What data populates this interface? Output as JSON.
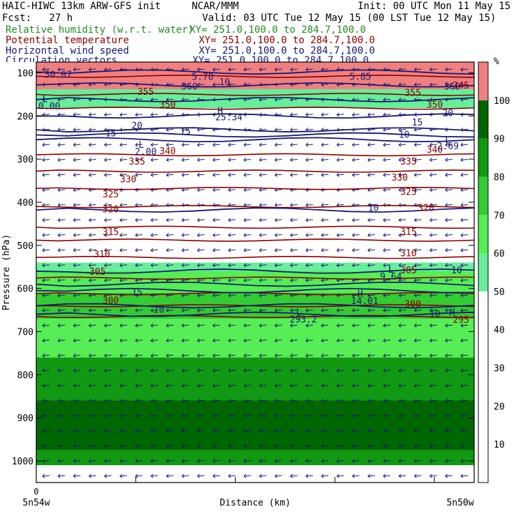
{
  "header": {
    "model": "HAIC-HIWC 13km ARW-GFS init",
    "org": "NCAR/MMM",
    "init": "Init: 00 UTC Mon 11 May 15",
    "fcst": "Fcst:   27 h",
    "valid": "Valid: 03 UTC Tue 12 May 15 (00 LST Tue 12 May 15)",
    "fields": [
      {
        "name": "Relative humidity (w.r.t. water)",
        "xy": "XY= 251.0,100.0 to 284.7,100.0",
        "color": "#228b22"
      },
      {
        "name": "Potential temperature",
        "xy": "XY= 251.0,100.0 to 284.7,100.0",
        "color": "#8b0000"
      },
      {
        "name": "Horizontal wind speed",
        "xy": "XY= 251.0,100.0 to 284.7,100.0",
        "color": "#191970"
      },
      {
        "name": "Circulation vectors",
        "xy": "XY= 251.0,100.0 to 284.7,100.0",
        "color": "#191970"
      }
    ]
  },
  "chart_data": {
    "type": "heatmap",
    "ylabel": "Pressure (hPa)",
    "xlabel": "Distance (km)",
    "x_start_label": "5n54w",
    "x_end_label": "5n50w",
    "x_zero_label": "0",
    "yticks": [
      100,
      200,
      300,
      400,
      500,
      600,
      700,
      800,
      900,
      1000
    ],
    "ylim": [
      1050,
      75
    ],
    "colorbar": {
      "unit": "%",
      "levels": [
        10,
        20,
        30,
        40,
        50,
        60,
        70,
        80,
        90,
        100
      ],
      "colors": [
        "#ffffff",
        "#ffffff",
        "#ffffff",
        "#ffffff",
        "#ffffff",
        "#66ee99",
        "#55ee55",
        "#33cc33",
        "#119911",
        "#006600",
        "#f08080"
      ]
    },
    "rh_bands": [
      {
        "p_top": 75,
        "p_bot": 138,
        "rh": 105
      },
      {
        "p_top": 138,
        "p_bot": 182,
        "rh": 55
      },
      {
        "p_top": 182,
        "p_bot": 540,
        "rh": 30
      },
      {
        "p_top": 540,
        "p_bot": 560,
        "rh": 55
      },
      {
        "p_top": 560,
        "p_bot": 610,
        "rh": 65
      },
      {
        "p_top": 610,
        "p_bot": 670,
        "rh": 75
      },
      {
        "p_top": 670,
        "p_bot": 760,
        "rh": 65
      },
      {
        "p_top": 760,
        "p_bot": 860,
        "rh": 80
      },
      {
        "p_top": 860,
        "p_bot": 975,
        "rh": 95
      },
      {
        "p_top": 975,
        "p_bot": 1010,
        "rh": 85
      },
      {
        "p_top": 1010,
        "p_bot": 1050,
        "rh": 30
      }
    ],
    "theta_labels": [
      {
        "text": "355",
        "x": 0.25,
        "p": 143
      },
      {
        "text": "355",
        "x": 0.86,
        "p": 145
      },
      {
        "text": "350",
        "x": 0.3,
        "p": 173
      },
      {
        "text": "350",
        "x": 0.91,
        "p": 173
      },
      {
        "text": "345",
        "x": 0.97,
        "p": 128
      },
      {
        "text": "340",
        "x": 0.3,
        "p": 280
      },
      {
        "text": "340",
        "x": 0.91,
        "p": 277
      },
      {
        "text": "335",
        "x": 0.23,
        "p": 305
      },
      {
        "text": "335",
        "x": 0.85,
        "p": 305
      },
      {
        "text": "330",
        "x": 0.21,
        "p": 346
      },
      {
        "text": "330",
        "x": 0.83,
        "p": 342
      },
      {
        "text": "325",
        "x": 0.17,
        "p": 381
      },
      {
        "text": "325",
        "x": 0.85,
        "p": 375
      },
      {
        "text": "320",
        "x": 0.17,
        "p": 415
      },
      {
        "text": "320",
        "x": 0.89,
        "p": 412
      },
      {
        "text": "315",
        "x": 0.17,
        "p": 468
      },
      {
        "text": "315",
        "x": 0.85,
        "p": 468
      },
      {
        "text": "310",
        "x": 0.15,
        "p": 520
      },
      {
        "text": "310",
        "x": 0.85,
        "p": 517
      },
      {
        "text": "305",
        "x": 0.14,
        "p": 560
      },
      {
        "text": "305",
        "x": 0.85,
        "p": 557
      },
      {
        "text": "300",
        "x": 0.17,
        "p": 627
      },
      {
        "text": "300",
        "x": 0.86,
        "p": 635
      },
      {
        "text": "295",
        "x": 0.97,
        "p": 672
      }
    ],
    "wind_labels": [
      {
        "text": "10",
        "x": 0.43,
        "p": 120
      },
      {
        "text": "20",
        "x": 0.94,
        "p": 192
      },
      {
        "text": "15",
        "x": 0.87,
        "p": 214
      },
      {
        "text": "20",
        "x": 0.23,
        "p": 221
      },
      {
        "text": "15",
        "x": 0.17,
        "p": 239
      },
      {
        "text": "15",
        "x": 0.34,
        "p": 235
      },
      {
        "text": "10",
        "x": 0.84,
        "p": 242
      },
      {
        "text": "10",
        "x": 0.77,
        "p": 412
      },
      {
        "text": "10",
        "x": 0.96,
        "p": 557
      },
      {
        "text": "15",
        "x": 0.23,
        "p": 608
      },
      {
        "text": "10",
        "x": 0.28,
        "p": 648
      },
      {
        "text": "10",
        "x": 0.91,
        "p": 658
      }
    ],
    "extrema_labels": [
      {
        "text": "L",
        "x": 0.02,
        "p": 160
      },
      {
        "text": "0.00",
        "x": 0.03,
        "p": 176
      },
      {
        "text": "H",
        "x": 0.42,
        "p": 187
      },
      {
        "text": "25.34",
        "x": 0.44,
        "p": 202
      },
      {
        "text": "L",
        "x": 0.24,
        "p": 266
      },
      {
        "text": "2.00",
        "x": 0.25,
        "p": 282
      },
      {
        "text": "L",
        "x": 0.94,
        "p": 255
      },
      {
        "text": "2.69",
        "x": 0.94,
        "p": 269
      },
      {
        "text": "L",
        "x": 0.81,
        "p": 555
      },
      {
        "text": "9.64",
        "x": 0.81,
        "p": 571
      },
      {
        "text": "H",
        "x": 0.74,
        "p": 612
      },
      {
        "text": "14.01",
        "x": 0.75,
        "p": 628
      },
      {
        "text": "L",
        "x": 0.6,
        "p": 655
      },
      {
        "text": "293.2",
        "x": 0.61,
        "p": 671
      },
      {
        "text": "H",
        "x": 0.95,
        "p": 655
      },
      {
        "text": "50.07",
        "x": 0.05,
        "p": 103
      },
      {
        "text": "5.78",
        "x": 0.38,
        "p": 108
      },
      {
        "text": "5.85",
        "x": 0.74,
        "p": 108
      },
      {
        "text": "360",
        "x": 0.35,
        "p": 131
      },
      {
        "text": "360",
        "x": 0.95,
        "p": 131
      }
    ],
    "theta_lines_p": [
      108,
      150,
      182,
      290,
      328,
      368,
      410,
      458,
      488,
      528,
      576,
      612,
      640,
      665
    ],
    "wind_lines_p": [
      98,
      128,
      162,
      200,
      232,
      244,
      255,
      418,
      560,
      590,
      605,
      640,
      660
    ],
    "vector_rows": 28,
    "vector_cols": 28
  }
}
